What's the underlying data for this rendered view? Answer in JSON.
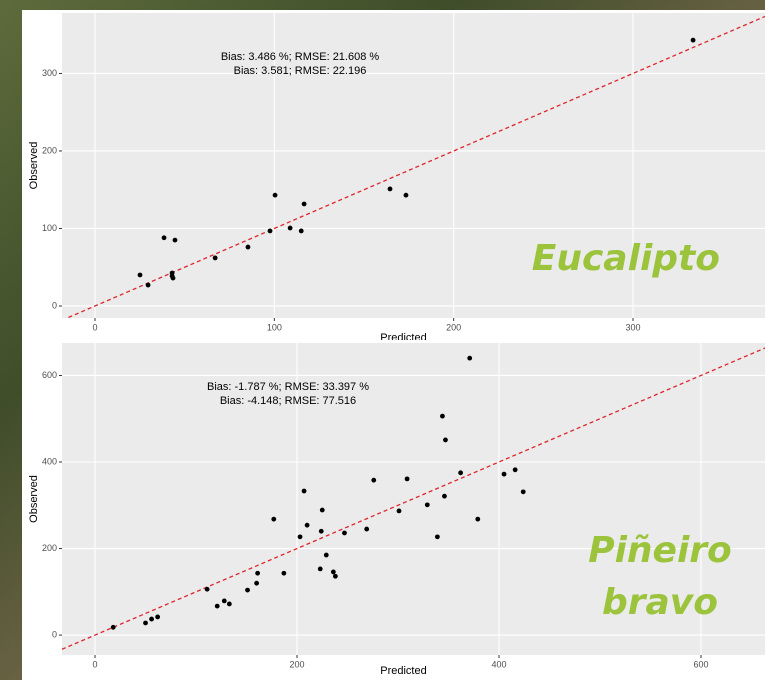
{
  "chart_data": [
    {
      "type": "scatter",
      "x": [
        25.1,
        29.6,
        38.5,
        44.6,
        43,
        43,
        43.5,
        67,
        85.3,
        97.6,
        100.4,
        108.8,
        115,
        116.6,
        164.5,
        173.4,
        333.5
      ],
      "values": [
        40,
        27,
        88,
        85,
        42.6,
        38.7,
        36,
        62,
        76,
        96.8,
        143,
        100.6,
        96.8,
        131.6,
        151,
        143,
        343
      ],
      "color": "#000000",
      "xlim": [
        -18.4,
        373.6
      ],
      "ylim": [
        -15.5,
        378
      ],
      "xticks": [
        0,
        100,
        200,
        300
      ],
      "yticks": [
        0,
        100,
        200,
        300
      ],
      "grid": true,
      "xlabel": "Predicted",
      "ylabel": "Observed",
      "annotations": [
        "Bias: 3.486 %; RMSE: 21.608 %",
        "Bias: 3.581; RMSE: 22.196"
      ],
      "label": [
        "Eucalipto"
      ],
      "reference_line": {
        "slope": 1,
        "intercept": 0,
        "color": "#e0242b"
      }
    },
    {
      "type": "scatter",
      "x": [
        18,
        50,
        56,
        62,
        111,
        121,
        128,
        133,
        151,
        160,
        161,
        177,
        187,
        203,
        207,
        210,
        223,
        224,
        225,
        229,
        236,
        238,
        247,
        269,
        276,
        301,
        309,
        329,
        339,
        344,
        346,
        347,
        362,
        371,
        379,
        405,
        416,
        424
      ],
      "values": [
        18,
        28,
        37,
        42,
        106,
        67,
        79,
        72,
        104,
        120,
        143,
        268,
        143,
        227,
        333,
        254,
        153,
        240,
        289,
        185,
        146,
        136,
        236,
        245,
        358,
        287,
        361,
        301,
        227,
        506,
        321,
        451,
        375,
        640,
        268,
        372,
        382,
        331
      ],
      "color": "#000000",
      "xlim": [
        -32.7,
        663.4
      ],
      "ylim": [
        -46,
        675
      ],
      "xticks": [
        0,
        200,
        400,
        600
      ],
      "yticks": [
        0,
        200,
        400,
        600
      ],
      "grid": true,
      "xlabel": "Predicted",
      "ylabel": "Observed",
      "annotations": [
        "Bias: -1.787 %; RMSE: 33.397 %",
        "Bias: -4.148; RMSE: 77.516"
      ],
      "label": [
        "Piñeiro",
        "bravo"
      ],
      "reference_line": {
        "slope": 1,
        "intercept": 0,
        "color": "#e0242b"
      }
    }
  ]
}
